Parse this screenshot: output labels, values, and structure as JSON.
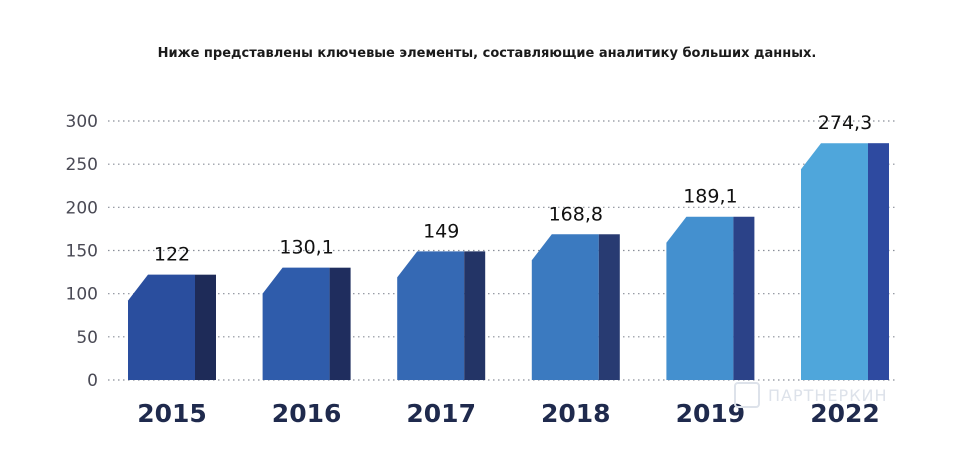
{
  "subtitle": "Ниже представлены ключевые элементы, составляющие аналитику больших данных.",
  "watermark": "ПАРТНЕРКИН",
  "chart_data": {
    "type": "bar",
    "categories": [
      "2015",
      "2016",
      "2017",
      "2018",
      "2019",
      "2022"
    ],
    "values": [
      122,
      130.1,
      149,
      168.8,
      189.1,
      274.3
    ],
    "data_labels": [
      "122",
      "130,1",
      "149",
      "168,8",
      "189,1",
      "274,3"
    ],
    "yticks": [
      "0",
      "50",
      "100",
      "150",
      "200",
      "250",
      "300"
    ],
    "ylim": [
      0,
      300
    ],
    "grid": "dotted horizontal",
    "colors": {
      "front": [
        "#2a4e9e",
        "#2f5cab",
        "#3569b4",
        "#3b7ac0",
        "#4490cf",
        "#4fa6db"
      ],
      "side": [
        "#1e2b58",
        "#1f2d5e",
        "#233466",
        "#283b72",
        "#2b4288",
        "#2e4aa0"
      ]
    }
  }
}
